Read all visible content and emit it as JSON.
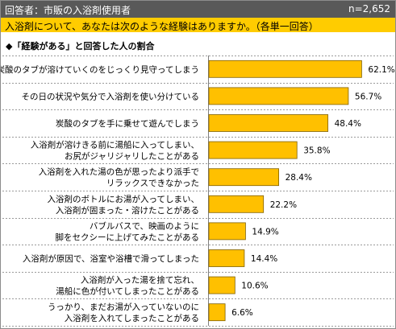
{
  "header": {
    "respondents_label": "回答者：市販の入浴剤使用者",
    "sample_size": "n=2,652"
  },
  "question": {
    "text": "入浴剤について、あなたは次のような経験はありますか。（各単一回答）"
  },
  "subtitle": "◆「経験がある」と回答した人の割合",
  "colors": {
    "header_bg": "#595959",
    "question_bg": "#ffcc00",
    "bar_fill": "#ffc000"
  },
  "chart_data": {
    "type": "bar",
    "orientation": "horizontal",
    "title": "",
    "xlabel": "",
    "ylabel": "",
    "unit": "%",
    "xlim": [
      0,
      100
    ],
    "grid": false,
    "categories": [
      [
        "炭酸のタブが溶けていくのをじっくり見守ってしまう"
      ],
      [
        "その日の状況や気分で入浴剤を使い分けている"
      ],
      [
        "炭酸のタブを手に乗せて遊んでしまう"
      ],
      [
        "入浴剤が溶けきる前に湯船に入ってしまい、",
        "お尻がジャリジャリしたことがある"
      ],
      [
        "入浴剤を入れた湯の色が思ったより派手で",
        "リラックスできなかった"
      ],
      [
        "入浴剤のボトルにお湯が入ってしまい、",
        "入浴剤が固まった・溶けたことがある"
      ],
      [
        "バブルバスで、映画のように",
        "脚をセクシーに上げてみたことがある"
      ],
      [
        "入浴剤が原因で、浴室や浴槽で滑ってしまった"
      ],
      [
        "入浴剤が入った湯を捨て忘れ、",
        "湯船に色が付いてしまったことがある"
      ],
      [
        "うっかり、まだお湯が入っていないのに",
        "入浴剤を入れてしまったことがある"
      ]
    ],
    "values": [
      62.1,
      56.7,
      48.4,
      35.8,
      28.4,
      22.2,
      14.9,
      14.4,
      10.6,
      6.6
    ],
    "value_labels": [
      "62.1%",
      "56.7%",
      "48.4%",
      "35.8%",
      "28.4%",
      "22.2%",
      "14.9%",
      "14.4%",
      "10.6%",
      "6.6%"
    ]
  }
}
